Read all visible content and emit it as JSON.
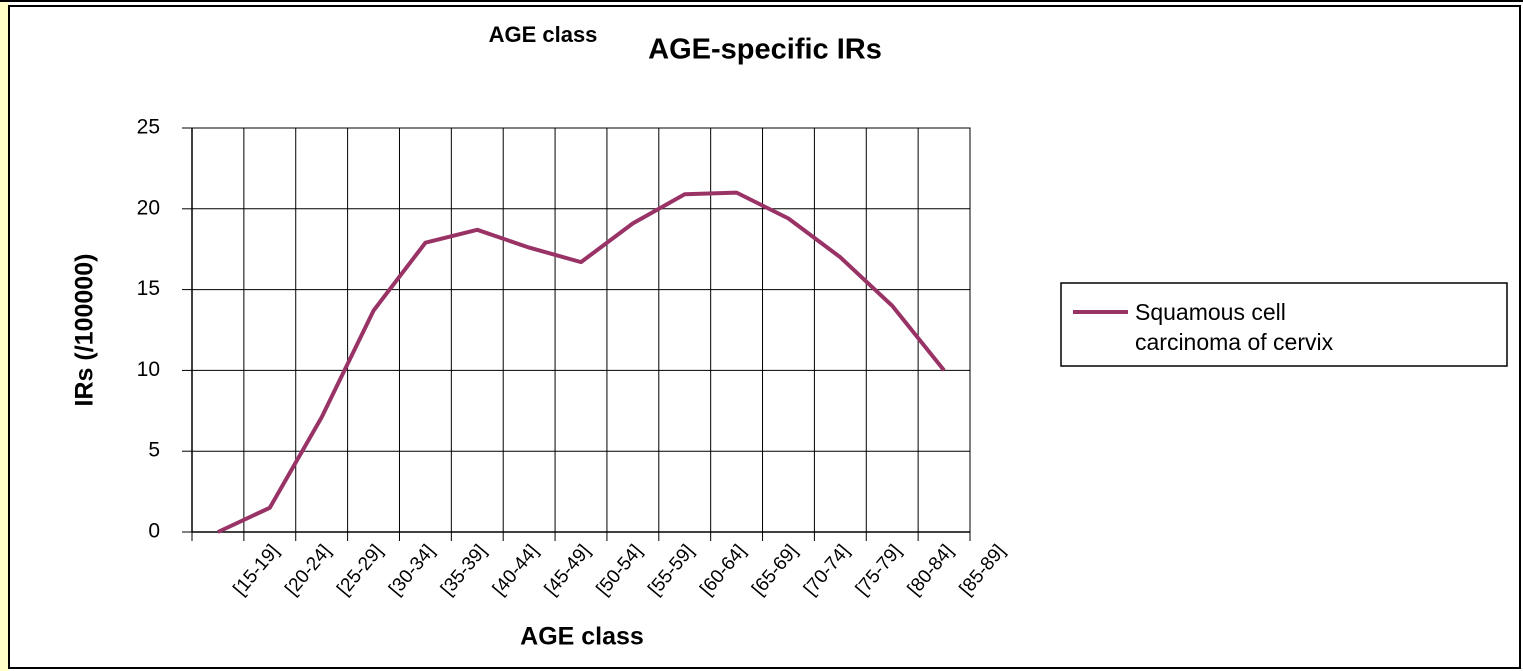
{
  "chart_data": {
    "type": "line",
    "title": "AGE-specific IRs",
    "annotation": "AGE class",
    "x_label": "AGE class",
    "y_label": "IRs (/100000)",
    "categories": [
      "[15-19]",
      "[20-24]",
      "[25-29]",
      "[30-34]",
      "[35-39]",
      "[40-44]",
      "[45-49]",
      "[50-54]",
      "[55-59]",
      "[60-64]",
      "[65-69]",
      "[70-74]",
      "[75-79]",
      "[80-84]",
      "[85-89]"
    ],
    "series": [
      {
        "name": "Squamous cell carcinoma of cervix",
        "color": "#993366",
        "values": [
          0,
          1.5,
          7.1,
          13.7,
          17.9,
          18.7,
          17.6,
          16.7,
          19.1,
          20.9,
          21.0,
          19.4,
          17.0,
          14.0,
          10.0
        ]
      }
    ],
    "ylim": [
      0,
      25
    ],
    "yticks": [
      0,
      5,
      10,
      15,
      20,
      25
    ],
    "grid": true,
    "legend": "right"
  }
}
